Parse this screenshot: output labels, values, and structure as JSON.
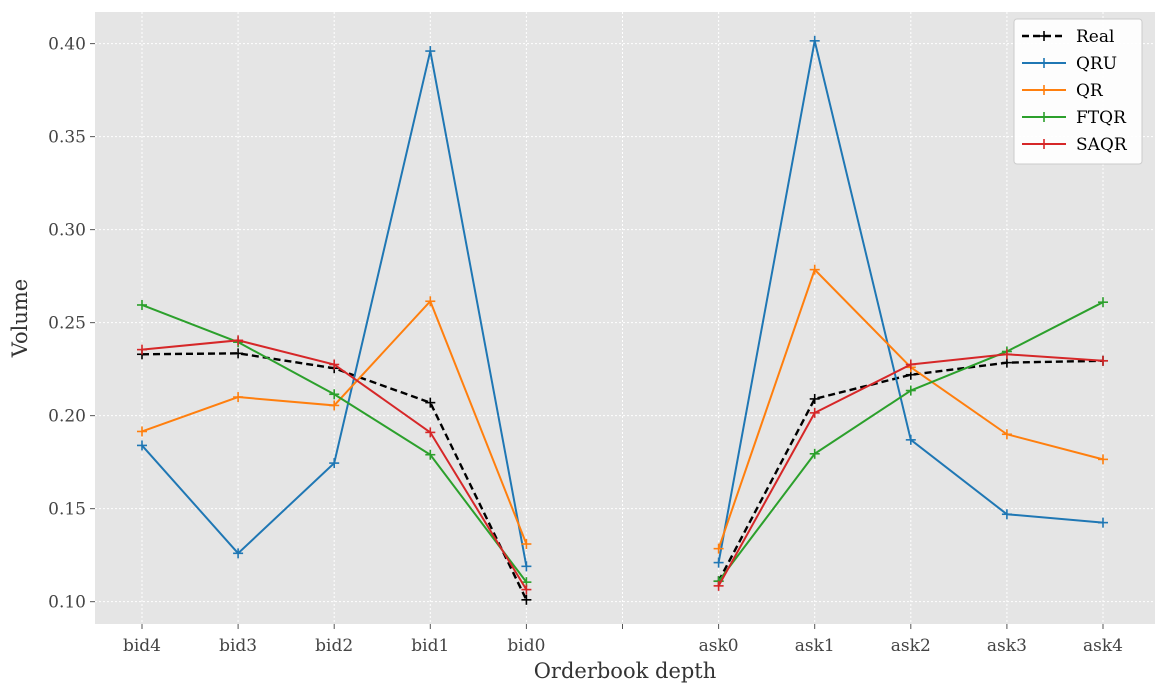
{
  "chart_data": {
    "type": "line",
    "title": "",
    "xlabel": "Orderbook depth",
    "ylabel": "Volume",
    "categories": [
      "bid4",
      "bid3",
      "bid2",
      "bid1",
      "bid0",
      "",
      "ask0",
      "ask1",
      "ask2",
      "ask3",
      "ask4"
    ],
    "ylim": [
      0.088,
      0.417
    ],
    "yticks": [
      0.1,
      0.15,
      0.2,
      0.25,
      0.3,
      0.35,
      0.4
    ],
    "ytick_labels": [
      "0.10",
      "0.15",
      "0.20",
      "0.25",
      "0.30",
      "0.35",
      "0.40"
    ],
    "grid": true,
    "legend_position": "top-right",
    "series": [
      {
        "name": "Real",
        "color": "#000000",
        "dashed": true,
        "values": [
          0.233,
          0.2335,
          0.2255,
          0.207,
          0.101,
          null,
          0.111,
          0.209,
          0.222,
          0.2285,
          0.2295
        ]
      },
      {
        "name": "QRU",
        "color": "#1f77b4",
        "dashed": false,
        "values": [
          0.184,
          0.126,
          0.1745,
          0.396,
          0.119,
          null,
          0.121,
          0.4015,
          0.187,
          0.147,
          0.1425
        ]
      },
      {
        "name": "QR",
        "color": "#ff7f0e",
        "dashed": false,
        "values": [
          0.1915,
          0.21,
          0.2055,
          0.2615,
          0.131,
          null,
          0.1285,
          0.2785,
          0.226,
          0.19,
          0.1765
        ]
      },
      {
        "name": "FTQR",
        "color": "#2ca02c",
        "dashed": false,
        "values": [
          0.2595,
          0.2395,
          0.2115,
          0.179,
          0.1105,
          null,
          0.111,
          0.1795,
          0.2135,
          0.2345,
          0.261
        ]
      },
      {
        "name": "SAQR",
        "color": "#d62728",
        "dashed": false,
        "values": [
          0.2355,
          0.2405,
          0.2275,
          0.191,
          0.1065,
          null,
          0.1085,
          0.2015,
          0.2275,
          0.233,
          0.2295
        ]
      }
    ]
  }
}
